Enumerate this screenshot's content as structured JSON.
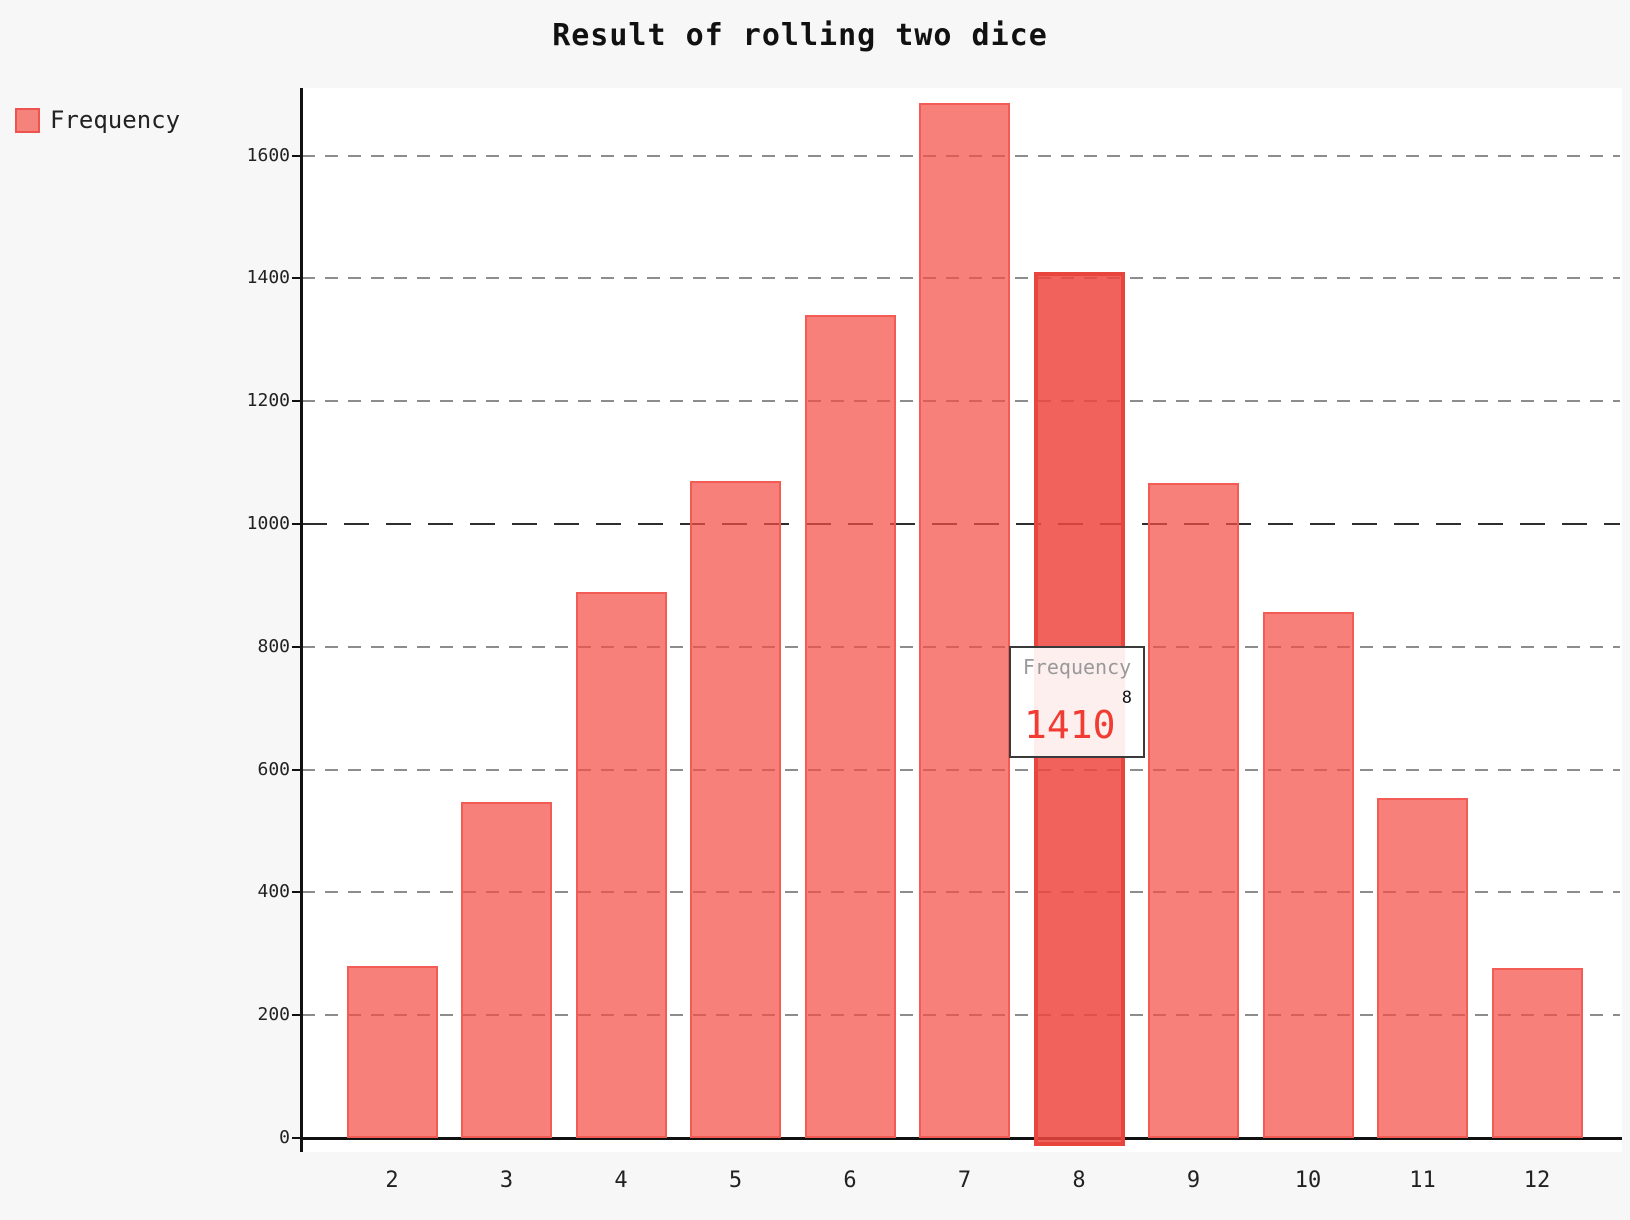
{
  "title": "Result of rolling two dice",
  "legend": {
    "label": "Frequency",
    "swatch_fill": "#f4837c",
    "swatch_border": "#ef5350"
  },
  "tooltip": {
    "series_label": "Frequency",
    "category": "8",
    "value": "1410",
    "value_color": "#f23b32"
  },
  "colors": {
    "page_background": "#f7f7f7",
    "plot_background": "#ffffff",
    "bar_fill": "rgba(244,79,70,0.72)",
    "bar_border": "#f25a52",
    "bar_hover_fill": "rgba(240,70,63,0.85)",
    "bar_hover_border": "#e8453c",
    "grid_line": "#8d8d8d",
    "grid_line_emphasized": "#2e2e2e",
    "axis_line": "#111111"
  },
  "chart_data": {
    "type": "bar",
    "title": "Result of rolling two dice",
    "series_name": "Frequency",
    "categories": [
      "2",
      "3",
      "4",
      "5",
      "6",
      "7",
      "8",
      "9",
      "10",
      "11",
      "12"
    ],
    "values": [
      280,
      548,
      890,
      1070,
      1340,
      1685,
      1410,
      1066,
      856,
      553,
      277
    ],
    "highlighted_category": "8",
    "highlighted_value": 1410,
    "xlabel": "",
    "ylabel": "",
    "ylim": [
      0,
      1710
    ],
    "yticks": [
      0,
      200,
      400,
      600,
      800,
      1000,
      1200,
      1400,
      1600
    ],
    "emphasized_gridline": 1000,
    "grid": "horizontal-dashed",
    "legend_position": "top-left",
    "tooltip_visible_for": "8"
  }
}
